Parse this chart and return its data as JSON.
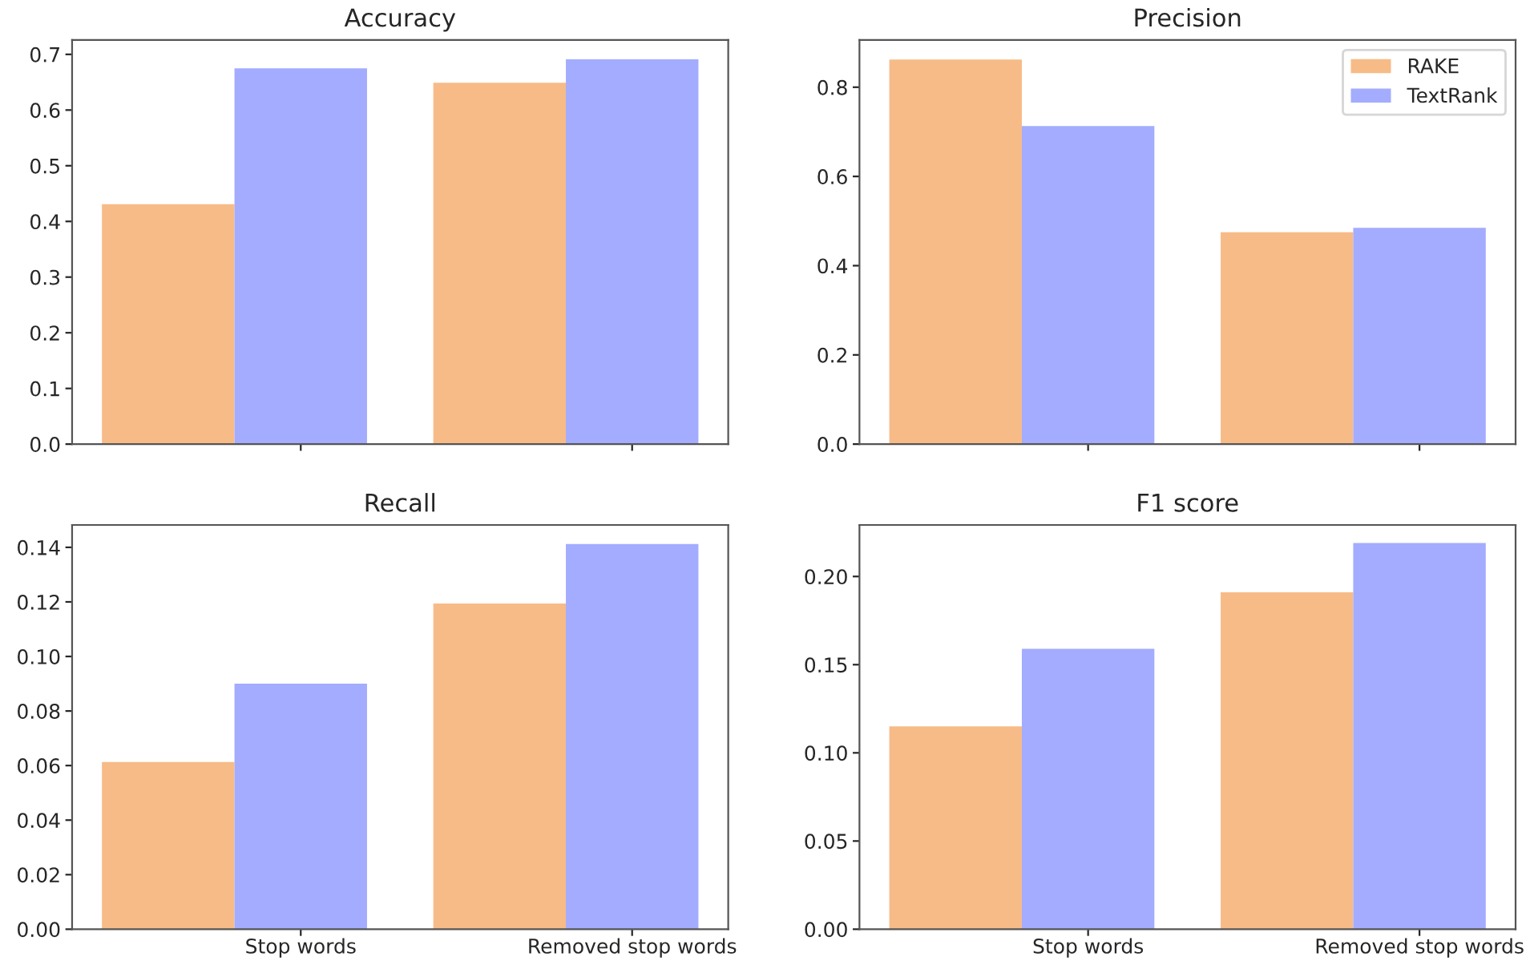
{
  "chart_data": [
    {
      "type": "bar",
      "title": "Accuracy",
      "categories": [
        null,
        null
      ],
      "tick_labels": "y",
      "ylim": [
        0,
        0.726
      ],
      "yticks": [
        {
          "value": 0,
          "label": "0.0"
        },
        0.1,
        0.2,
        0.3,
        0.4,
        0.5,
        0.6,
        0.7
      ],
      "grid": false,
      "series": [
        {
          "color": "#f7bb87",
          "values": [
            0.431,
            0.649
          ]
        },
        {
          "color": "#a3acfe",
          "values": [
            0.675,
            0.691
          ]
        }
      ]
    },
    {
      "type": "bar",
      "title": "Precision",
      "categories": [
        null,
        null
      ],
      "tick_labels": "y",
      "ylim": [
        0,
        0.906
      ],
      "yticks": [
        {
          "value": 0,
          "label": "0.0"
        },
        0.2,
        0.4,
        0.6,
        0.8
      ],
      "grid": false,
      "legend": "top right",
      "series": [
        {
          "name": "RAKE",
          "color": "#f7bb87",
          "values": [
            0.862,
            0.475
          ]
        },
        {
          "name": "TextRank",
          "color": "#a3acfe",
          "values": [
            0.713,
            0.485
          ]
        }
      ]
    },
    {
      "type": "bar",
      "title": "Recall",
      "categories": [
        "Stop words",
        "Removed stop words"
      ],
      "ylim": [
        0,
        0.1482
      ],
      "yticks": [
        {
          "value": 0,
          "label": "0.00"
        },
        {
          "value": 0.02,
          "label": "0.02"
        },
        {
          "value": 0.04,
          "label": "0.04"
        },
        {
          "value": 0.06,
          "label": "0.06"
        },
        {
          "value": 0.08,
          "label": "0.08"
        },
        {
          "value": 0.1,
          "label": "0.10"
        },
        {
          "value": 0.12,
          "label": "0.12"
        },
        {
          "value": 0.14,
          "label": "0.14"
        }
      ],
      "grid": false,
      "series": [
        {
          "color": "#f7bb87",
          "values": [
            0.0613,
            0.1194
          ]
        },
        {
          "color": "#a3acfe",
          "values": [
            0.09,
            0.1412
          ]
        }
      ]
    },
    {
      "type": "bar",
      "title": "F1 score",
      "categories": [
        "Stop words",
        "Removed stop words"
      ],
      "ylim": [
        0,
        0.2292
      ],
      "yticks": [
        {
          "value": 0,
          "label": "0.00"
        },
        {
          "value": 0.05,
          "label": "0.05"
        },
        {
          "value": 0.1,
          "label": "0.10"
        },
        {
          "value": 0.15,
          "label": "0.15"
        },
        {
          "value": 0.2,
          "label": "0.20"
        }
      ],
      "grid": false,
      "series": [
        {
          "color": "#f7bb87",
          "values": [
            0.115,
            0.191
          ]
        },
        {
          "color": "#a3acfe",
          "values": [
            0.159,
            0.219
          ]
        }
      ]
    }
  ]
}
